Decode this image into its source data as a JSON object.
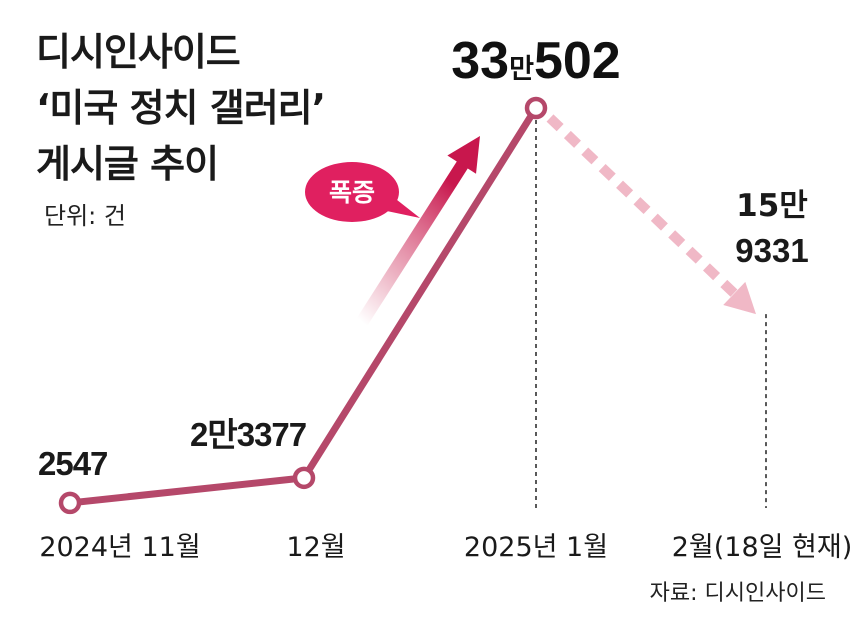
{
  "chart_data": {
    "type": "line",
    "title_lines": [
      "디시인사이드",
      "‘미국 정치 갤러리’",
      "게시글 추이"
    ],
    "unit": "단위: 건",
    "source": "자료: 디시인사이드",
    "badge": "폭증",
    "colors": {
      "line": "#b5486a",
      "dashed": "#f0b8c6",
      "badge": "#e02060",
      "arrow": "#c8174d"
    },
    "points": [
      {
        "x_label": "2024년 11월",
        "value": 2547,
        "label": "2547",
        "label_parts": []
      },
      {
        "x_label": "12월",
        "value": 23377,
        "label": "2만3377",
        "label_parts": []
      },
      {
        "x_label": "2025년 1월",
        "value": 330502,
        "label": "33만502",
        "label_parts": [
          "33",
          "만",
          "502"
        ]
      },
      {
        "x_label": "2월(18일 현재)",
        "value": 159331,
        "label": "15만 9331",
        "label_parts": [
          "15만",
          "9331"
        ]
      }
    ]
  }
}
